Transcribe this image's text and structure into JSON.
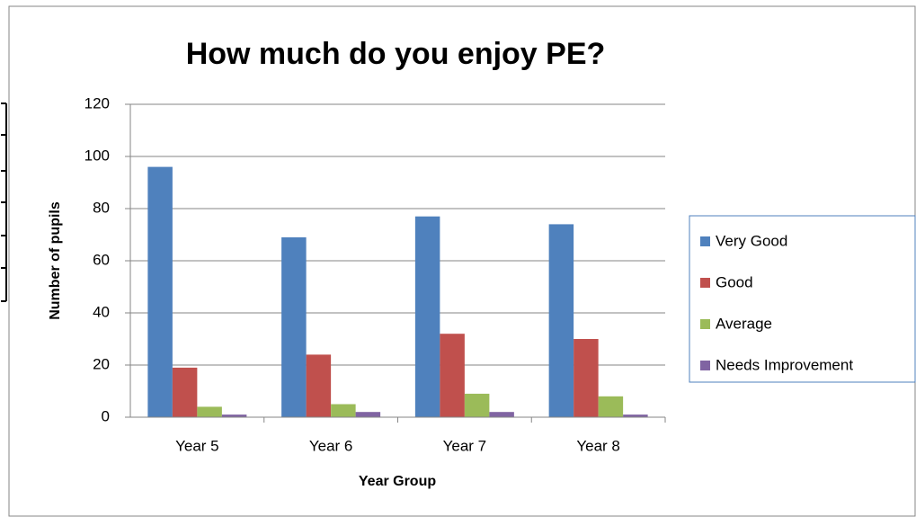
{
  "chart_data": {
    "type": "bar",
    "title": "How much do you enjoy PE?",
    "x_label": "Year Group",
    "y_label": "Number of pupils",
    "categories": [
      "Year 5",
      "Year 6",
      "Year 7",
      "Year 8"
    ],
    "series": [
      {
        "name": "Very Good",
        "color": "#4f81bd",
        "values": [
          96,
          69,
          77,
          74
        ]
      },
      {
        "name": "Good",
        "color": "#c0504d",
        "values": [
          19,
          24,
          32,
          30
        ]
      },
      {
        "name": "Average",
        "color": "#9bbb59",
        "values": [
          4,
          5,
          9,
          8
        ]
      },
      {
        "name": "Needs Improvement",
        "color": "#8064a2",
        "values": [
          1,
          2,
          2,
          1
        ]
      }
    ],
    "ylim": [
      0,
      120
    ],
    "yticks": [
      0,
      20,
      40,
      60,
      80,
      100,
      120
    ],
    "grid": true,
    "legend": "right"
  }
}
